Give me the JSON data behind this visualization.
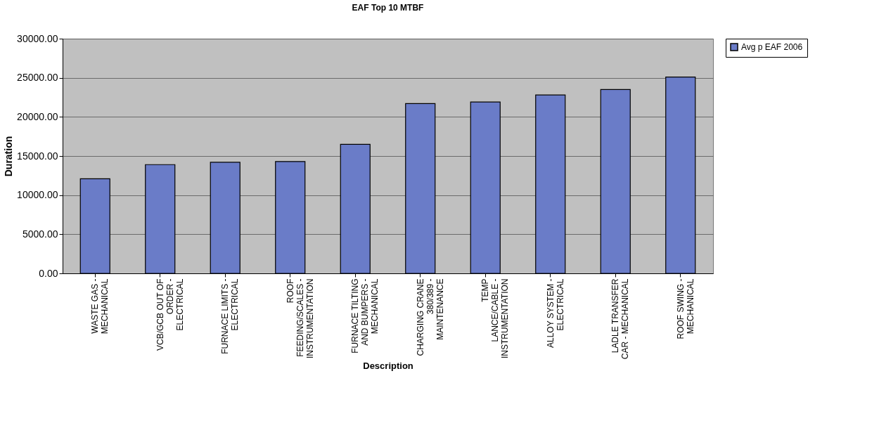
{
  "chart_data": {
    "type": "bar",
    "title": "EAF Top 10 MTBF",
    "xlabel": "Description",
    "ylabel": "Duration",
    "categories": [
      "WASTE GAS - MECHANICAL",
      "VCB/GCB OUT OF ORDER - ELECTRICAL",
      "FURNACE LIMITS - ELECTRICAL",
      "ROOF FEEDING/SCALES - INSTRUMENTATION",
      "FURNACE TILTING AND BUMPERS - MECHANICAL",
      "CHARGING CRANE 380/389 - MAINTENANCE",
      "TEMP LANCE/CABLE - INSTRUMENTATION",
      "ALLOY SYSTEM - ELECTRICAL",
      "LADLE TRANSFER CAR - MECHANICAL",
      "ROOF SWING - MECHANICAL"
    ],
    "series": [
      {
        "name": "Avg p EAF 2006",
        "color": "#6a7cc8",
        "values": [
          12100,
          13900,
          14200,
          14300,
          16500,
          21700,
          21900,
          22800,
          23500,
          25100
        ]
      }
    ],
    "ylim": [
      0,
      30000
    ],
    "yticks": [
      {
        "value": 0,
        "label": "0.00"
      },
      {
        "value": 5000,
        "label": "5000.00"
      },
      {
        "value": 10000,
        "label": "10000.00"
      },
      {
        "value": 15000,
        "label": "15000.00"
      },
      {
        "value": 20000,
        "label": "20000.00"
      },
      {
        "value": 25000,
        "label": "25000.00"
      },
      {
        "value": 30000,
        "label": "30000.00"
      }
    ],
    "grid": "y",
    "legend": "right"
  }
}
